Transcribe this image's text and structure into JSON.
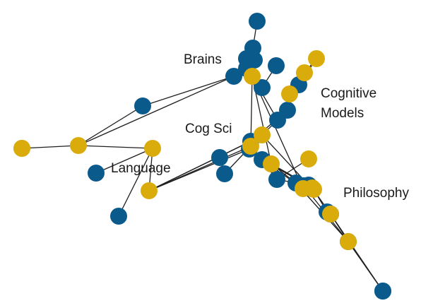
{
  "colors": {
    "blue": "#0b5a8c",
    "gold": "#d9ac0c",
    "edge": "#1f1f1f"
  },
  "labels": {
    "brains": "Brains",
    "cognitive_line1": "Cognitive",
    "cognitive_line2": "Models",
    "cogsci": "Cog Sci",
    "language": "Language",
    "philosophy": "Philosophy"
  },
  "nodes": [
    {
      "id": "n1",
      "kind": "blue"
    },
    {
      "id": "n2",
      "kind": "blue"
    },
    {
      "id": "n3",
      "kind": "blue"
    },
    {
      "id": "n4",
      "kind": "blue"
    },
    {
      "id": "n5",
      "kind": "blue"
    },
    {
      "id": "n6",
      "kind": "blue"
    },
    {
      "id": "n7",
      "kind": "blue"
    },
    {
      "id": "n8",
      "kind": "gold"
    },
    {
      "id": "n9",
      "kind": "gold"
    },
    {
      "id": "n10",
      "kind": "gold"
    },
    {
      "id": "n11",
      "kind": "gold"
    },
    {
      "id": "n12",
      "kind": "blue"
    },
    {
      "id": "n13",
      "kind": "blue"
    },
    {
      "id": "n14",
      "kind": "gold"
    },
    {
      "id": "n15",
      "kind": "blue"
    },
    {
      "id": "n16",
      "kind": "blue"
    },
    {
      "id": "n17",
      "kind": "gold"
    },
    {
      "id": "n18",
      "kind": "gold"
    },
    {
      "id": "n19",
      "kind": "blue"
    },
    {
      "id": "n20",
      "kind": "gold"
    },
    {
      "id": "n21",
      "kind": "blue"
    },
    {
      "id": "n22",
      "kind": "blue"
    },
    {
      "id": "n23",
      "kind": "gold"
    },
    {
      "id": "n24",
      "kind": "blue"
    },
    {
      "id": "n25",
      "kind": "gold"
    },
    {
      "id": "n26",
      "kind": "blue"
    },
    {
      "id": "n27",
      "kind": "blue"
    },
    {
      "id": "n28",
      "kind": "blue"
    },
    {
      "id": "n29",
      "kind": "blue"
    },
    {
      "id": "n30",
      "kind": "gold"
    },
    {
      "id": "n31",
      "kind": "gold"
    },
    {
      "id": "n32",
      "kind": "blue"
    },
    {
      "id": "n33",
      "kind": "blue"
    },
    {
      "id": "n34",
      "kind": "gold"
    },
    {
      "id": "n35",
      "kind": "blue"
    },
    {
      "id": "n36",
      "kind": "gold"
    },
    {
      "id": "n37",
      "kind": "gold"
    },
    {
      "id": "n38",
      "kind": "blue"
    },
    {
      "id": "n39",
      "kind": "blue"
    },
    {
      "id": "n40",
      "kind": "gold"
    },
    {
      "id": "n41",
      "kind": "blue"
    },
    {
      "id": "n42",
      "kind": "gold"
    },
    {
      "id": "n43",
      "kind": "blue"
    },
    {
      "id": "n44",
      "kind": "gold"
    },
    {
      "id": "n45",
      "kind": "blue"
    },
    {
      "id": "n46",
      "kind": "blue"
    }
  ],
  "edges": [
    [
      "n3",
      "n2"
    ],
    [
      "n2",
      "n1"
    ],
    [
      "n3",
      "n4"
    ],
    [
      "n4",
      "n5"
    ],
    [
      "n5",
      "n6"
    ],
    [
      "n6",
      "n7"
    ],
    [
      "n7",
      "n8"
    ],
    [
      "n6",
      "n8"
    ],
    [
      "n8",
      "n10"
    ],
    [
      "n8",
      "n9"
    ],
    [
      "n11",
      "n9"
    ],
    [
      "n10",
      "n12"
    ],
    [
      "n10",
      "n13"
    ],
    [
      "n5",
      "n14"
    ],
    [
      "n14",
      "n15"
    ],
    [
      "n15",
      "n16"
    ],
    [
      "n17",
      "n18"
    ],
    [
      "n18",
      "n19"
    ],
    [
      "n19",
      "n20"
    ],
    [
      "n14",
      "n22"
    ],
    [
      "n24",
      "n25"
    ],
    [
      "n30",
      "n25"
    ],
    [
      "n30",
      "n26"
    ],
    [
      "n32",
      "n34"
    ],
    [
      "n14",
      "n30"
    ],
    [
      "n14",
      "n31"
    ],
    [
      "n36",
      "n37"
    ],
    [
      "n37",
      "n38"
    ],
    [
      "n38",
      "n39"
    ],
    [
      "n39",
      "n40"
    ],
    [
      "n40",
      "n41"
    ],
    [
      "n41",
      "n42"
    ],
    [
      "n42",
      "n43"
    ],
    [
      "n43",
      "n44"
    ],
    [
      "n44",
      "n45"
    ],
    [
      "n45",
      "n46"
    ],
    [
      "n28",
      "n29"
    ],
    [
      "n29",
      "n40"
    ],
    [
      "n30",
      "n32"
    ],
    [
      "n32",
      "n33"
    ],
    [
      "n33",
      "n42"
    ],
    [
      "n31",
      "n33"
    ],
    [
      "n31",
      "n32"
    ],
    [
      "n25",
      "n24"
    ],
    [
      "n26",
      "n27"
    ],
    [
      "n10",
      "n25"
    ],
    [
      "n24",
      "n30"
    ],
    [
      "n35",
      "n36"
    ],
    [
      "n36",
      "n40"
    ],
    [
      "n31",
      "n35"
    ],
    [
      "n31",
      "n28"
    ],
    [
      "n25",
      "n28"
    ],
    [
      "n14",
      "n36"
    ],
    [
      "n22",
      "n23"
    ],
    [
      "n23",
      "n35"
    ],
    [
      "n21",
      "n24"
    ],
    [
      "n20",
      "n21"
    ],
    [
      "n17",
      "n19"
    ],
    [
      "n29",
      "n36"
    ],
    [
      "n33",
      "n45"
    ]
  ]
}
